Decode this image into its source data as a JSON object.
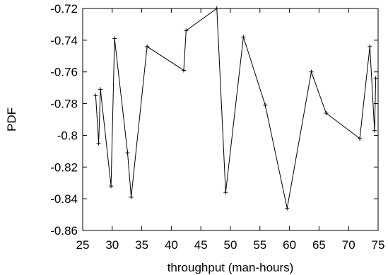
{
  "chart_data": {
    "type": "line",
    "title": "",
    "xlabel": "throughput (man-hours)",
    "ylabel": "PDF",
    "xlim": [
      25,
      75
    ],
    "ylim": [
      -0.86,
      -0.72
    ],
    "x_ticks": [
      "25",
      "30",
      "35",
      "40",
      "45",
      "50",
      "55",
      "60",
      "65",
      "70",
      "75"
    ],
    "y_ticks": [
      "-0.72",
      "-0.74",
      "-0.76",
      "-0.78",
      "-0.8",
      "-0.82",
      "-0.84",
      "-0.86"
    ],
    "x_tick_values": [
      25,
      30,
      35,
      40,
      45,
      50,
      55,
      60,
      65,
      70,
      75
    ],
    "y_tick_values": [
      -0.72,
      -0.74,
      -0.76,
      -0.78,
      -0.8,
      -0.82,
      -0.84,
      -0.86
    ],
    "grid": false,
    "marker": "plus",
    "line_color": "#000000",
    "series": [
      {
        "points": [
          [
            27.2,
            -0.775
          ],
          [
            27.7,
            -0.805
          ],
          [
            28.0,
            -0.771
          ],
          [
            29.8,
            -0.832
          ],
          [
            30.4,
            -0.739
          ],
          [
            32.6,
            -0.811
          ],
          [
            33.2,
            -0.839
          ],
          [
            35.9,
            -0.744
          ],
          [
            42.1,
            -0.759
          ],
          [
            42.5,
            -0.734
          ],
          [
            47.7,
            -0.72
          ],
          [
            49.2,
            -0.836
          ],
          [
            52.2,
            -0.738
          ],
          [
            55.9,
            -0.781
          ],
          [
            59.6,
            -0.846
          ],
          [
            63.7,
            -0.76
          ],
          [
            66.2,
            -0.786
          ],
          [
            71.9,
            -0.802
          ],
          [
            73.6,
            -0.744
          ],
          [
            74.4,
            -0.797
          ],
          [
            74.6,
            -0.764
          ]
        ]
      }
    ]
  }
}
